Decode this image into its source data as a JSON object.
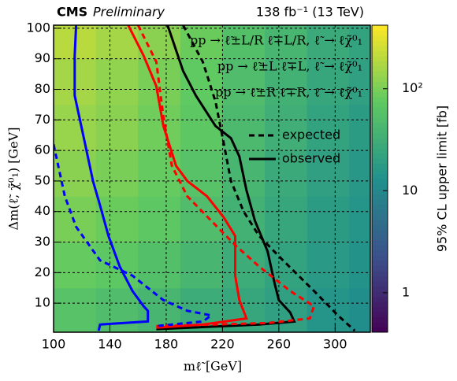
{
  "chart_data": {
    "type": "contour-limit",
    "experiment": "CMS",
    "status": "Preliminary",
    "lumi": "138 fb⁻¹ (13 TeV)",
    "xlabel": "mℓ̃ [GeV]",
    "ylabel": "Δm(ℓ̃, χ̃⁰₁) [GeV]",
    "zlabel": "95% CL upper limit [fb]",
    "xlim": [
      100,
      325
    ],
    "xticks": [
      100,
      140,
      180,
      220,
      260,
      300
    ],
    "ylim": [
      0.5,
      101
    ],
    "yticks": [
      10,
      20,
      30,
      40,
      50,
      60,
      70,
      80,
      90,
      100
    ],
    "zlim": [
      0.41,
      420
    ],
    "zscale": "log",
    "zticks": [
      1,
      10,
      {
        "value": 100,
        "label": "10²"
      }
    ],
    "grid": true,
    "heatmap": {
      "xedges": [
        100,
        130,
        160,
        190,
        220,
        250,
        280,
        310,
        325
      ],
      "yedges": [
        0.5,
        15,
        30,
        45,
        60,
        75,
        90,
        101
      ],
      "values": [
        [
          60,
          50,
          40,
          30,
          25,
          20,
          15,
          12
        ],
        [
          80,
          70,
          55,
          40,
          30,
          22,
          17,
          14
        ],
        [
          100,
          85,
          70,
          50,
          35,
          25,
          18,
          15
        ],
        [
          120,
          100,
          80,
          60,
          40,
          28,
          20,
          16
        ],
        [
          140,
          120,
          90,
          70,
          45,
          32,
          22,
          18
        ],
        [
          160,
          130,
          100,
          75,
          50,
          35,
          25,
          20
        ],
        [
          200,
          160,
          120,
          85,
          55,
          40,
          28,
          22
        ]
      ]
    },
    "groups": [
      {
        "label": "pp → ℓ̃±L/R ℓ̃∓L/R, ℓ̃ → ℓχ̃⁰₁",
        "color": "#000000",
        "observed": {
          "x": [
            181,
            192,
            201,
            215,
            226,
            232,
            237,
            243,
            252,
            257,
            260,
            268,
            271,
            246,
            173
          ],
          "values": [
            101,
            86,
            78,
            68,
            64,
            58,
            47,
            37,
            27,
            16.5,
            11,
            7,
            4,
            3,
            1.5
          ]
        },
        "expected": {
          "x": [
            192,
            206,
            215,
            221,
            226,
            235,
            246,
            263,
            285,
            302,
            314
          ],
          "values": [
            101,
            89,
            76,
            62,
            50,
            40,
            32,
            24,
            14,
            6,
            1
          ]
        }
      },
      {
        "label": "pp → ℓ̃±L ℓ̃∓L, ℓ̃ → ℓχ̃⁰₁",
        "color": "#ff0000",
        "observed": {
          "x": [
            153,
            164,
            173,
            178,
            187,
            195,
            209,
            221,
            229,
            229,
            232,
            237,
            206,
            173
          ],
          "values": [
            101,
            91,
            81,
            68,
            55,
            50,
            45,
            38,
            32,
            19,
            11,
            5,
            3,
            2
          ]
        },
        "expected": {
          "x": [
            160,
            173,
            178,
            184,
            195,
            212,
            229,
            246,
            268,
            285,
            282,
            252,
            173
          ],
          "values": [
            101,
            89,
            71,
            55,
            45,
            37,
            29,
            22,
            14,
            9,
            5,
            3.5,
            2.5
          ]
        }
      },
      {
        "label": "pp → ℓ̃±R ℓ̃∓R, ℓ̃ → ℓχ̃⁰₁",
        "color": "#0000ff",
        "observed": {
          "x": [
            116,
            115,
            115,
            122,
            128,
            133,
            139,
            147,
            156,
            164,
            167,
            167,
            133,
            132
          ],
          "values": [
            101,
            91,
            78,
            63,
            50,
            42,
            32,
            22,
            14,
            9,
            7.5,
            4,
            3,
            1
          ]
        },
        "expected": {
          "x": [
            100,
            108,
            116,
            133,
            156,
            178,
            195,
            212,
            206,
            173
          ],
          "values": [
            62,
            45,
            35,
            24,
            19,
            11,
            7.5,
            6,
            4,
            2.5
          ]
        }
      }
    ],
    "styles": [
      "expected",
      "observed"
    ]
  }
}
